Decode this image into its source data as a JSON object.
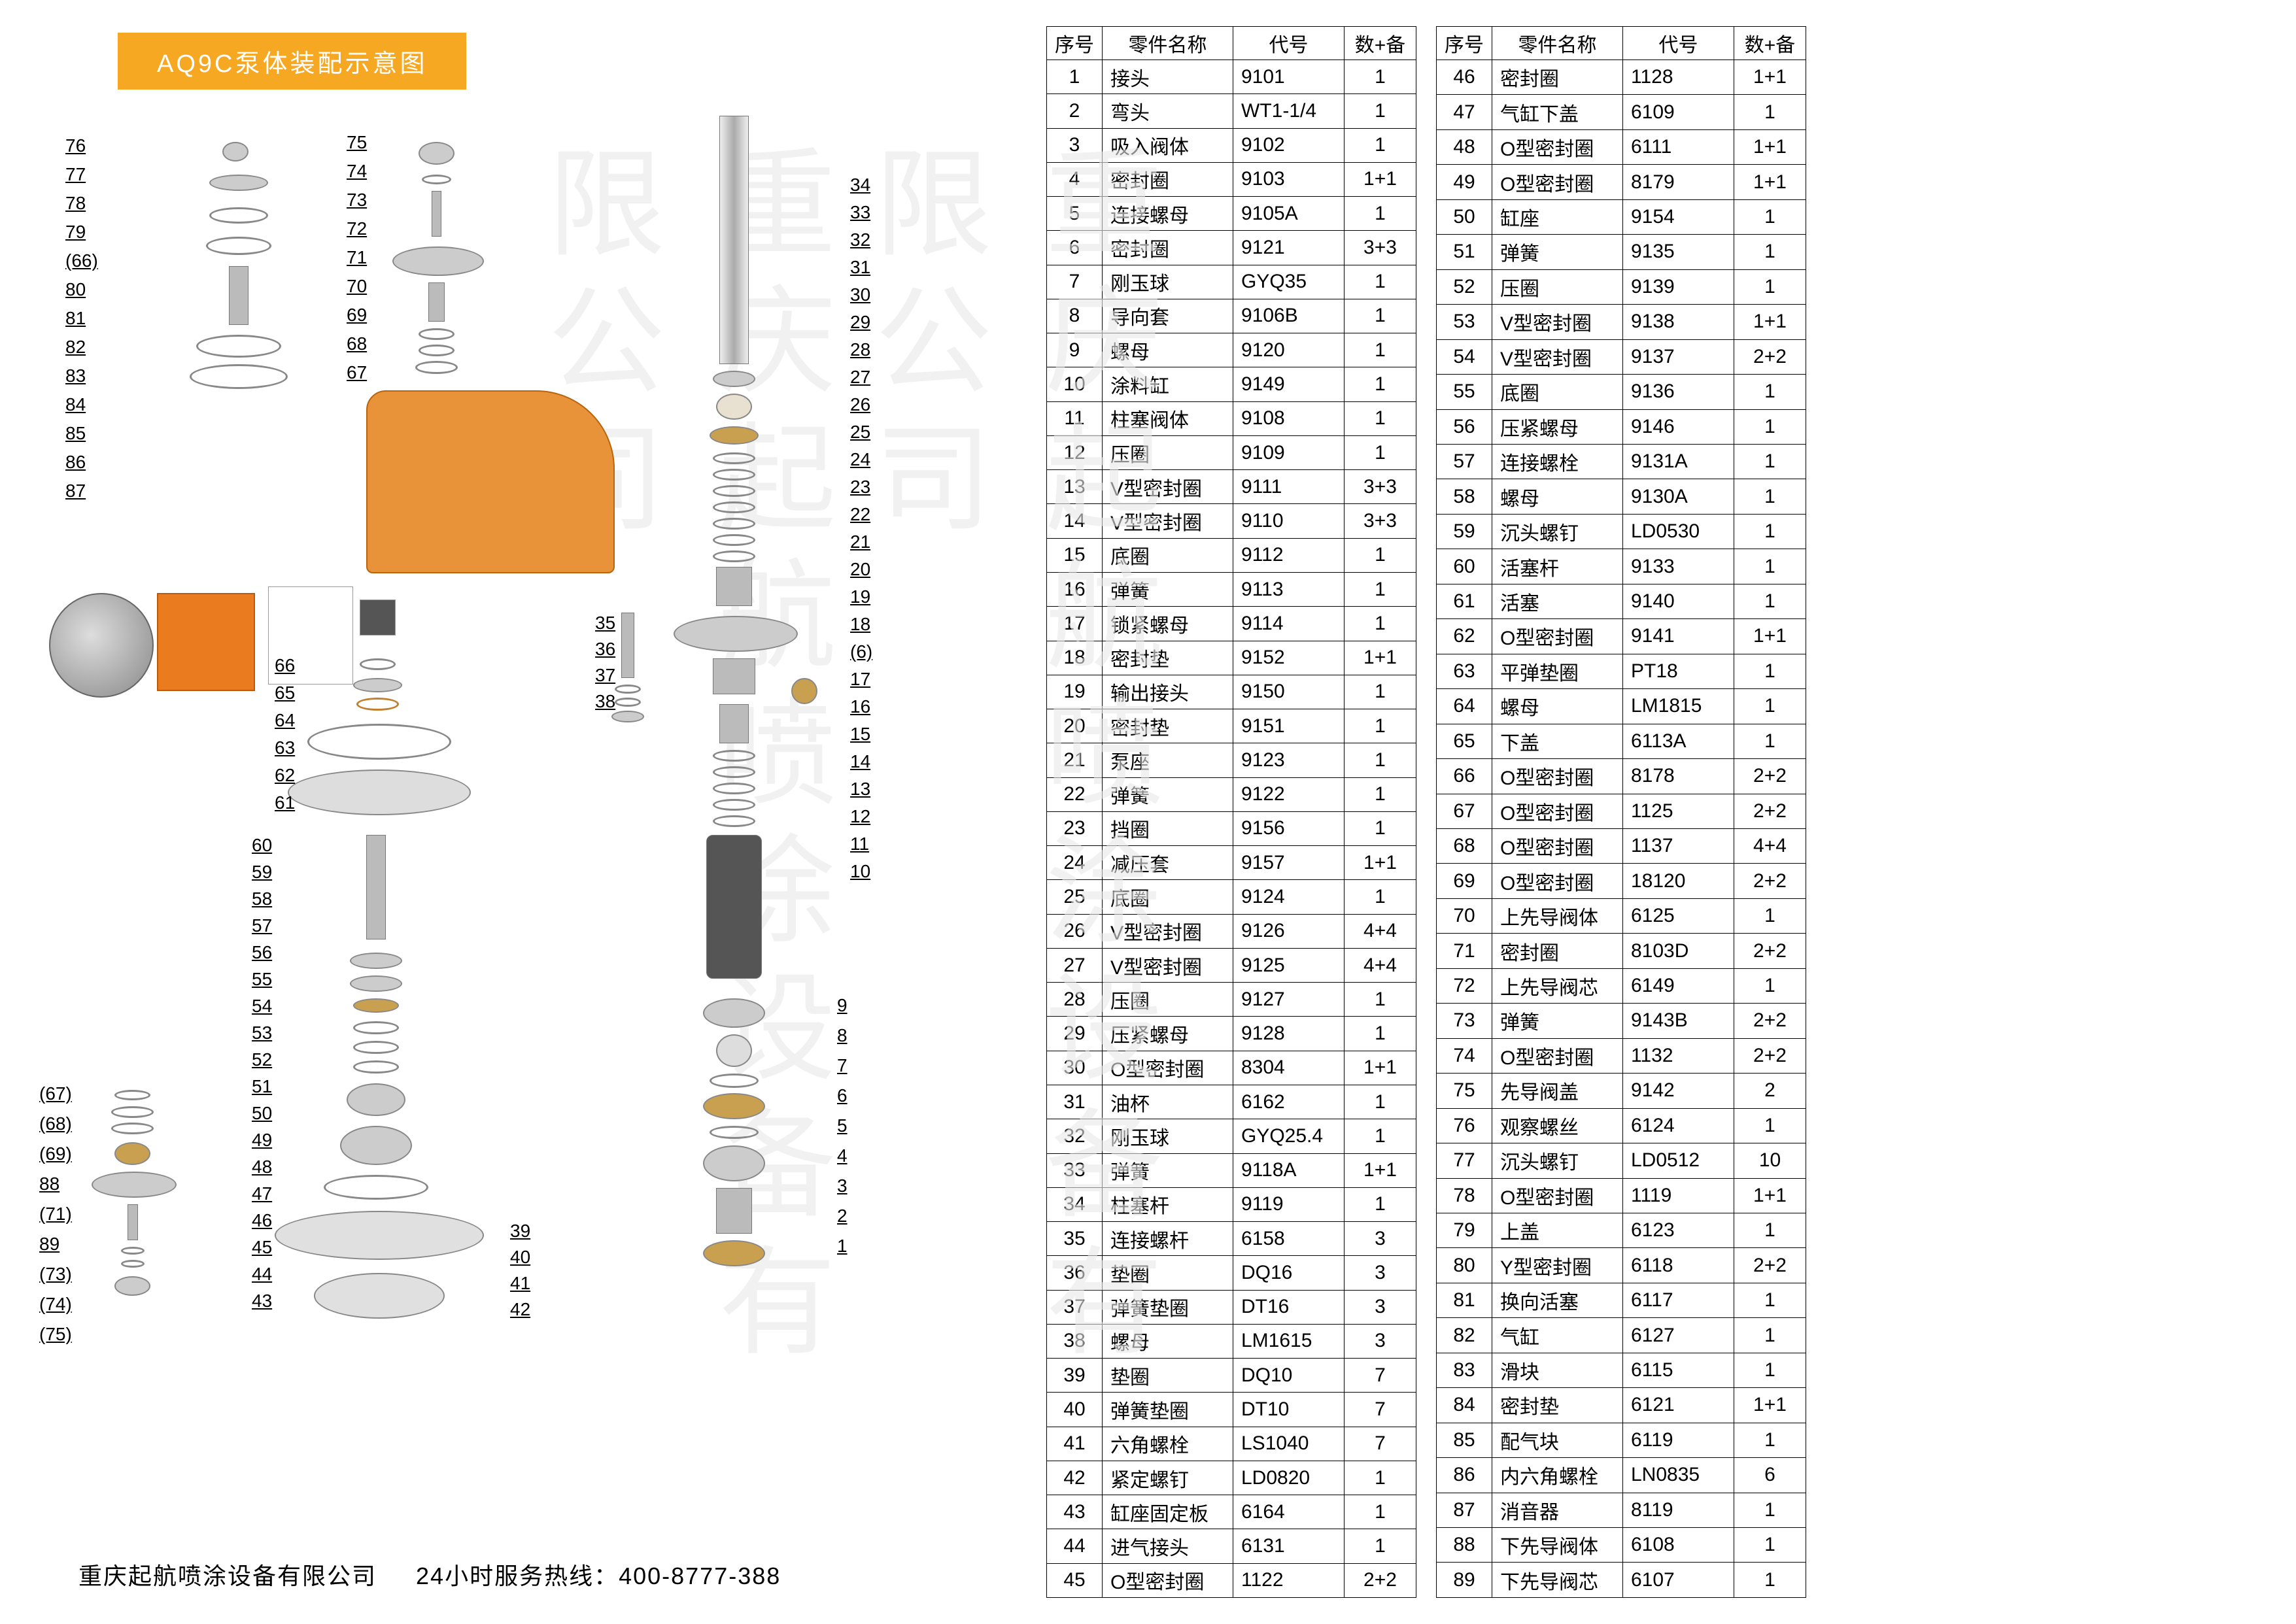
{
  "title": "AQ9C泵体装配示意图",
  "watermark": "重庆起航喷涂设备有限公司",
  "footer_company": "重庆起航喷涂设备有限公司",
  "footer_hotline_label": "24小时服务热线：",
  "footer_hotline": "400-8777-388",
  "colors": {
    "title_bg": "#f7a823",
    "title_text": "#ffffff",
    "pump_body": "#e8923a",
    "orange_block": "#ea7c1f",
    "watermark": "#e8e8e8",
    "border": "#000000"
  },
  "headers": {
    "seq": "序号",
    "name": "零件名称",
    "code": "代号",
    "qty": "数+备"
  },
  "callouts_left_col1": [
    "76",
    "77",
    "78",
    "79",
    "(66)",
    "80",
    "81",
    "82",
    "83",
    "84",
    "85",
    "86",
    "87"
  ],
  "callouts_left_col2": [
    "75",
    "74",
    "73",
    "72",
    "71",
    "70",
    "69",
    "68",
    "67"
  ],
  "callouts_left_col3": [
    "66",
    "65",
    "64",
    "63",
    "62",
    "61"
  ],
  "callouts_left_col4": [
    "60",
    "59",
    "58",
    "57",
    "56",
    "55",
    "54",
    "53",
    "52",
    "51",
    "50",
    "49",
    "48",
    "47",
    "46",
    "45",
    "44",
    "43"
  ],
  "callouts_right_col1": [
    "34",
    "33",
    "32",
    "31",
    "30",
    "29",
    "28",
    "27",
    "26",
    "25",
    "24",
    "23",
    "22",
    "21",
    "20",
    "19",
    "18",
    "(6)",
    "17",
    "16",
    "15",
    "14",
    "13",
    "12",
    "11",
    "10"
  ],
  "callouts_right_col2": [
    "35",
    "36",
    "37",
    "38"
  ],
  "callouts_right_col3": [
    "39",
    "40",
    "41",
    "42"
  ],
  "callouts_right_col4": [
    "9",
    "8",
    "7",
    "6",
    "5",
    "4",
    "3",
    "2",
    "1"
  ],
  "callouts_small": [
    "(67)",
    "(68)",
    "(69)",
    "88",
    "(71)",
    "89",
    "(73)",
    "(74)",
    "(75)"
  ],
  "parts_table_1": [
    {
      "n": "1",
      "name": "接头",
      "code": "9101",
      "qty": "1"
    },
    {
      "n": "2",
      "name": "弯头",
      "code": "WT1-1/4",
      "qty": "1"
    },
    {
      "n": "3",
      "name": "吸入阀体",
      "code": "9102",
      "qty": "1"
    },
    {
      "n": "4",
      "name": "密封圈",
      "code": "9103",
      "qty": "1+1"
    },
    {
      "n": "5",
      "name": "连接螺母",
      "code": "9105A",
      "qty": "1"
    },
    {
      "n": "6",
      "name": "密封圈",
      "code": "9121",
      "qty": "3+3"
    },
    {
      "n": "7",
      "name": "刚玉球",
      "code": "GYQ35",
      "qty": "1"
    },
    {
      "n": "8",
      "name": "导向套",
      "code": "9106B",
      "qty": "1"
    },
    {
      "n": "9",
      "name": "螺母",
      "code": "9120",
      "qty": "1"
    },
    {
      "n": "10",
      "name": "涂料缸",
      "code": "9149",
      "qty": "1"
    },
    {
      "n": "11",
      "name": "柱塞阀体",
      "code": "9108",
      "qty": "1"
    },
    {
      "n": "12",
      "name": "压圈",
      "code": "9109",
      "qty": "1"
    },
    {
      "n": "13",
      "name": "V型密封圈",
      "code": "9111",
      "qty": "3+3"
    },
    {
      "n": "14",
      "name": "V型密封圈",
      "code": "9110",
      "qty": "3+3"
    },
    {
      "n": "15",
      "name": "底圈",
      "code": "9112",
      "qty": "1"
    },
    {
      "n": "16",
      "name": "弹簧",
      "code": "9113",
      "qty": "1"
    },
    {
      "n": "17",
      "name": "锁紧螺母",
      "code": "9114",
      "qty": "1"
    },
    {
      "n": "18",
      "name": "密封垫",
      "code": "9152",
      "qty": "1+1"
    },
    {
      "n": "19",
      "name": "输出接头",
      "code": "9150",
      "qty": "1"
    },
    {
      "n": "20",
      "name": "密封垫",
      "code": "9151",
      "qty": "1"
    },
    {
      "n": "21",
      "name": "泵座",
      "code": "9123",
      "qty": "1"
    },
    {
      "n": "22",
      "name": "弹簧",
      "code": "9122",
      "qty": "1"
    },
    {
      "n": "23",
      "name": "挡圈",
      "code": "9156",
      "qty": "1"
    },
    {
      "n": "24",
      "name": "减压套",
      "code": "9157",
      "qty": "1+1"
    },
    {
      "n": "25",
      "name": "底圈",
      "code": "9124",
      "qty": "1"
    },
    {
      "n": "26",
      "name": "V型密封圈",
      "code": "9126",
      "qty": "4+4"
    },
    {
      "n": "27",
      "name": "V型密封圈",
      "code": "9125",
      "qty": "4+4"
    },
    {
      "n": "28",
      "name": "压圈",
      "code": "9127",
      "qty": "1"
    },
    {
      "n": "29",
      "name": "压紧螺母",
      "code": "9128",
      "qty": "1"
    },
    {
      "n": "30",
      "name": "O型密封圈",
      "code": "8304",
      "qty": "1+1"
    },
    {
      "n": "31",
      "name": "油杯",
      "code": "6162",
      "qty": "1"
    },
    {
      "n": "32",
      "name": "刚玉球",
      "code": "GYQ25.4",
      "qty": "1"
    },
    {
      "n": "33",
      "name": "弹簧",
      "code": "9118A",
      "qty": "1+1"
    },
    {
      "n": "34",
      "name": "柱塞杆",
      "code": "9119",
      "qty": "1"
    },
    {
      "n": "35",
      "name": "连接螺杆",
      "code": "6158",
      "qty": "3"
    },
    {
      "n": "36",
      "name": "垫圈",
      "code": "DQ16",
      "qty": "3"
    },
    {
      "n": "37",
      "name": "弹簧垫圈",
      "code": "DT16",
      "qty": "3"
    },
    {
      "n": "38",
      "name": "螺母",
      "code": "LM1615",
      "qty": "3"
    },
    {
      "n": "39",
      "name": "垫圈",
      "code": "DQ10",
      "qty": "7"
    },
    {
      "n": "40",
      "name": "弹簧垫圈",
      "code": "DT10",
      "qty": "7"
    },
    {
      "n": "41",
      "name": "六角螺栓",
      "code": "LS1040",
      "qty": "7"
    },
    {
      "n": "42",
      "name": "紧定螺钉",
      "code": "LD0820",
      "qty": "1"
    },
    {
      "n": "43",
      "name": "缸座固定板",
      "code": "6164",
      "qty": "1"
    },
    {
      "n": "44",
      "name": "进气接头",
      "code": "6131",
      "qty": "1"
    },
    {
      "n": "45",
      "name": "O型密封圈",
      "code": "1122",
      "qty": "2+2"
    }
  ],
  "parts_table_2": [
    {
      "n": "46",
      "name": "密封圈",
      "code": "1128",
      "qty": "1+1"
    },
    {
      "n": "47",
      "name": "气缸下盖",
      "code": "6109",
      "qty": "1"
    },
    {
      "n": "48",
      "name": "O型密封圈",
      "code": "6111",
      "qty": "1+1"
    },
    {
      "n": "49",
      "name": "O型密封圈",
      "code": "8179",
      "qty": "1+1"
    },
    {
      "n": "50",
      "name": "缸座",
      "code": "9154",
      "qty": "1"
    },
    {
      "n": "51",
      "name": "弹簧",
      "code": "9135",
      "qty": "1"
    },
    {
      "n": "52",
      "name": "压圈",
      "code": "9139",
      "qty": "1"
    },
    {
      "n": "53",
      "name": "V型密封圈",
      "code": "9138",
      "qty": "1+1"
    },
    {
      "n": "54",
      "name": "V型密封圈",
      "code": "9137",
      "qty": "2+2"
    },
    {
      "n": "55",
      "name": "底圈",
      "code": "9136",
      "qty": "1"
    },
    {
      "n": "56",
      "name": "压紧螺母",
      "code": "9146",
      "qty": "1"
    },
    {
      "n": "57",
      "name": "连接螺栓",
      "code": "9131A",
      "qty": "1"
    },
    {
      "n": "58",
      "name": "螺母",
      "code": "9130A",
      "qty": "1"
    },
    {
      "n": "59",
      "name": "沉头螺钉",
      "code": "LD0530",
      "qty": "1"
    },
    {
      "n": "60",
      "name": "活塞杆",
      "code": "9133",
      "qty": "1"
    },
    {
      "n": "61",
      "name": "活塞",
      "code": "9140",
      "qty": "1"
    },
    {
      "n": "62",
      "name": "O型密封圈",
      "code": "9141",
      "qty": "1+1"
    },
    {
      "n": "63",
      "name": "平弹垫圈",
      "code": "PT18",
      "qty": "1"
    },
    {
      "n": "64",
      "name": "螺母",
      "code": "LM1815",
      "qty": "1"
    },
    {
      "n": "65",
      "name": "下盖",
      "code": "6113A",
      "qty": "1"
    },
    {
      "n": "66",
      "name": "O型密封圈",
      "code": "8178",
      "qty": "2+2"
    },
    {
      "n": "67",
      "name": "O型密封圈",
      "code": "1125",
      "qty": "2+2"
    },
    {
      "n": "68",
      "name": "O型密封圈",
      "code": "1137",
      "qty": "4+4"
    },
    {
      "n": "69",
      "name": "O型密封圈",
      "code": "18120",
      "qty": "2+2"
    },
    {
      "n": "70",
      "name": "上先导阀体",
      "code": "6125",
      "qty": "1"
    },
    {
      "n": "71",
      "name": "密封圈",
      "code": "8103D",
      "qty": "2+2"
    },
    {
      "n": "72",
      "name": "上先导阀芯",
      "code": "6149",
      "qty": "1"
    },
    {
      "n": "73",
      "name": "弹簧",
      "code": "9143B",
      "qty": "2+2"
    },
    {
      "n": "74",
      "name": "O型密封圈",
      "code": "1132",
      "qty": "2+2"
    },
    {
      "n": "75",
      "name": "先导阀盖",
      "code": "9142",
      "qty": "2"
    },
    {
      "n": "76",
      "name": "观察螺丝",
      "code": "6124",
      "qty": "1"
    },
    {
      "n": "77",
      "name": "沉头螺钉",
      "code": "LD0512",
      "qty": "10"
    },
    {
      "n": "78",
      "name": "O型密封圈",
      "code": "1119",
      "qty": "1+1"
    },
    {
      "n": "79",
      "name": "上盖",
      "code": "6123",
      "qty": "1"
    },
    {
      "n": "80",
      "name": "Y型密封圈",
      "code": "6118",
      "qty": "2+2"
    },
    {
      "n": "81",
      "name": "换向活塞",
      "code": "6117",
      "qty": "1"
    },
    {
      "n": "82",
      "name": "气缸",
      "code": "6127",
      "qty": "1"
    },
    {
      "n": "83",
      "name": "滑块",
      "code": "6115",
      "qty": "1"
    },
    {
      "n": "84",
      "name": "密封垫",
      "code": "6121",
      "qty": "1+1"
    },
    {
      "n": "85",
      "name": "配气块",
      "code": "6119",
      "qty": "1"
    },
    {
      "n": "86",
      "name": "内六角螺栓",
      "code": "LN0835",
      "qty": "6"
    },
    {
      "n": "87",
      "name": "消音器",
      "code": "8119",
      "qty": "1"
    },
    {
      "n": "88",
      "name": "下先导阀体",
      "code": "6108",
      "qty": "1"
    },
    {
      "n": "89",
      "name": "下先导阀芯",
      "code": "6107",
      "qty": "1"
    }
  ]
}
